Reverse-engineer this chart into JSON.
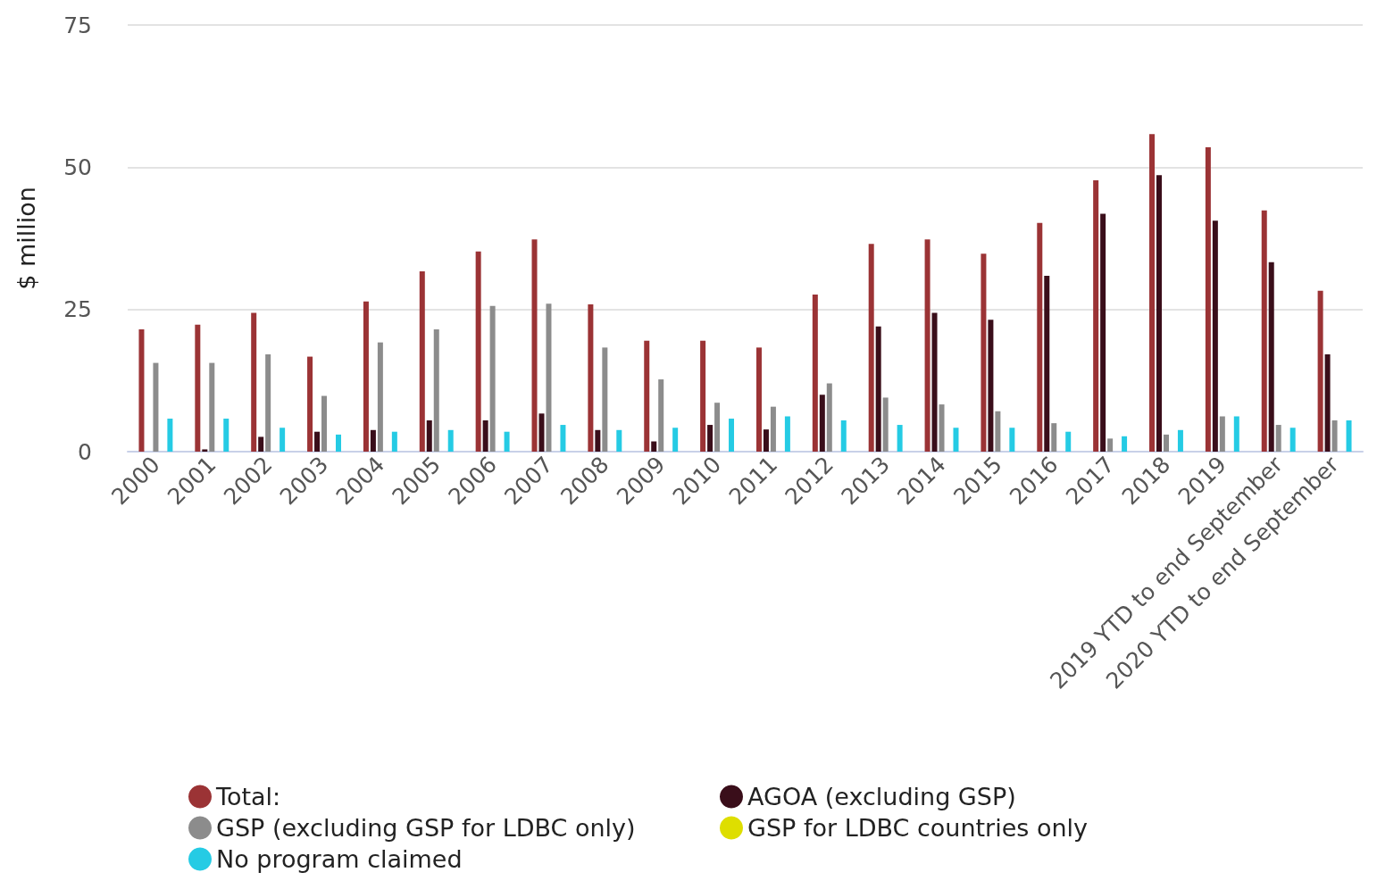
{
  "chart_data": {
    "type": "bar",
    "ylabel": "$ million",
    "categories": [
      "2000",
      "2001",
      "2002",
      "2003",
      "2004",
      "2005",
      "2006",
      "2007",
      "2008",
      "2009",
      "2010",
      "2011",
      "2012",
      "2013",
      "2014",
      "2015",
      "2016",
      "2017",
      "2018",
      "2019",
      "2019 YTD to end September",
      "2020 YTD to end September"
    ],
    "series": [
      {
        "name": "Total:",
        "color": "#9b3335",
        "values": [
          21.5,
          22.3,
          24.4,
          16.7,
          26.4,
          31.7,
          35.2,
          37.3,
          25.9,
          19.5,
          19.5,
          18.3,
          27.6,
          36.5,
          37.3,
          34.8,
          40.2,
          47.7,
          55.8,
          53.5,
          42.4,
          28.3
        ]
      },
      {
        "name": "AGOA (excluding GSP)",
        "color": "#3a0e1a",
        "values": [
          0,
          0.4,
          2.6,
          3.5,
          3.8,
          5.5,
          5.5,
          6.7,
          3.8,
          1.8,
          4.7,
          3.9,
          10,
          22,
          24.4,
          23.2,
          30.9,
          41.8,
          48.6,
          40.6,
          33.3,
          17.1
        ]
      },
      {
        "name": "GSP (excluding GSP for LDBC only)",
        "color": "#8c8c8c",
        "values": [
          15.6,
          15.6,
          17.1,
          9.8,
          19.2,
          21.5,
          25.6,
          26,
          18.3,
          12.7,
          8.6,
          7.9,
          12,
          9.5,
          8.3,
          7.1,
          5,
          2.3,
          3,
          6.2,
          4.7,
          5.5
        ]
      },
      {
        "name": "GSP for LDBC countries only",
        "color": "#dede00",
        "values": [
          0,
          0,
          0,
          0,
          0,
          0,
          0,
          0,
          0,
          0,
          0,
          0,
          0,
          0,
          0,
          0,
          0,
          0,
          0,
          0,
          0,
          0
        ]
      },
      {
        "name": "No program claimed",
        "color": "#25cbe4",
        "values": [
          5.8,
          5.8,
          4.2,
          3,
          3.5,
          3.8,
          3.5,
          4.7,
          3.8,
          4.2,
          5.8,
          6.2,
          5.5,
          4.7,
          4.2,
          4.2,
          3.5,
          2.7,
          3.8,
          6.2,
          4.2,
          5.5
        ]
      }
    ],
    "ylim": [
      0,
      75
    ],
    "yticks": [
      0,
      25,
      50,
      75
    ],
    "grid": "y",
    "legend": "bottom"
  }
}
